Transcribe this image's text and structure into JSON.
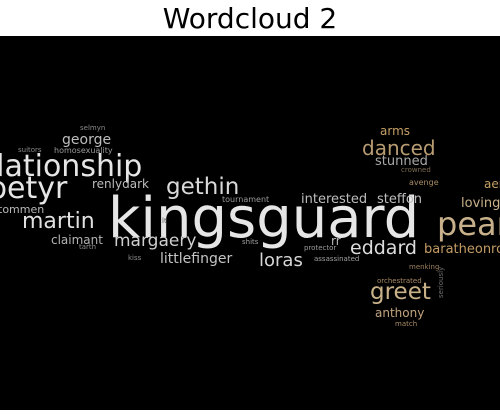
{
  "title": "Wordcloud 2",
  "canvas_color": "#000000",
  "words": [
    {
      "text": "kingsguard",
      "color": "#e6e6e6"
    },
    {
      "text": "relationship",
      "color": "#e6e6e6"
    },
    {
      "text": "petyr",
      "color": "#e6e6e6"
    },
    {
      "text": "gethin",
      "color": "#d9d9d9"
    },
    {
      "text": "martin",
      "color": "#e0e0e0"
    },
    {
      "text": "pearl",
      "color": "#c7b08a"
    },
    {
      "text": "greet",
      "color": "#c9b28a"
    },
    {
      "text": "danced",
      "color": "#b89c72"
    },
    {
      "text": "eddard",
      "color": "#dcdcdc"
    },
    {
      "text": "loras",
      "color": "#d6d6d6"
    },
    {
      "text": "margaery",
      "color": "#cfcfcf"
    },
    {
      "text": "george",
      "color": "#bdbdbd"
    },
    {
      "text": "renlydark",
      "color": "#bcbcbc"
    },
    {
      "text": "claimant",
      "color": "#b3b3b3"
    },
    {
      "text": "littlefinger",
      "color": "#c4c4c4"
    },
    {
      "text": "interested",
      "color": "#bdbdbd"
    },
    {
      "text": "steffon",
      "color": "#bdbdbd"
    },
    {
      "text": "stunned",
      "color": "#a8a8a8"
    },
    {
      "text": "arms",
      "color": "#c5a066"
    },
    {
      "text": "tommen",
      "color": "#b8b8b8"
    },
    {
      "text": "anthony",
      "color": "#c3a580"
    },
    {
      "text": "baratheonrobert",
      "color": "#c39c63"
    },
    {
      "text": "loving",
      "color": "#c9b28a"
    },
    {
      "text": "aemon",
      "color": "#c5a066"
    },
    {
      "text": "rr",
      "color": "#b8b8b8"
    },
    {
      "text": "selmyn",
      "color": "#8a8a8a"
    },
    {
      "text": "suitors",
      "color": "#8a8a8a"
    },
    {
      "text": "homosexuality",
      "color": "#9a9a9a"
    },
    {
      "text": "tournament",
      "color": "#9a9a9a"
    },
    {
      "text": "shits",
      "color": "#a0a0a0"
    },
    {
      "text": "protector",
      "color": "#9a9a9a"
    },
    {
      "text": "assassinated",
      "color": "#a0a0a0"
    },
    {
      "text": "kiss",
      "color": "#8e8e8e"
    },
    {
      "text": "tarth",
      "color": "#8e8e8e"
    },
    {
      "text": "orchestrated",
      "color": "#a88a66"
    },
    {
      "text": "match",
      "color": "#a88a66"
    },
    {
      "text": "avenge",
      "color": "#a88a66"
    },
    {
      "text": "crowned",
      "color": "#7c6a52"
    },
    {
      "text": "menking",
      "color": "#9a7f5c"
    },
    {
      "text": "seriously",
      "color": "#6f6f6f"
    },
    {
      "text": "lt",
      "color": "#555555"
    }
  ]
}
